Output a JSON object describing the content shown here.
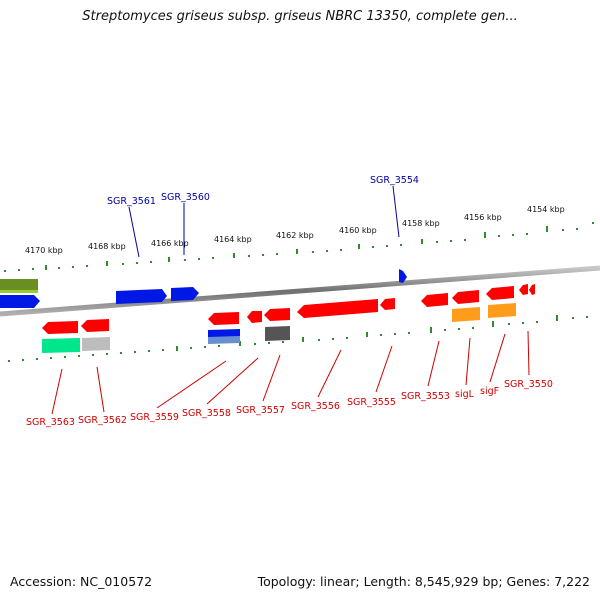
{
  "title": "Streptomyces griseus subsp. griseus NBRC 13350, complete gen...",
  "footer": {
    "accession": "Accession: NC_010572",
    "topology": "Topology: linear; Length: 8,545,929 bp; Genes: 7,222"
  },
  "colors": {
    "red": "#ff0000",
    "blue": "#0018e6",
    "olive": "#6b8e23",
    "green": "#00e68a",
    "gray": "#bdbdbd",
    "dark": "#555555",
    "orange": "#ff9d1a",
    "label_red": "#d00000",
    "label_blue": "#0000a0",
    "tick": "#2e8b2e"
  },
  "scale_labels": [
    "4170 kbp",
    "4168 kbp",
    "4166 kbp",
    "4164 kbp",
    "4162 kbp",
    "4160 kbp",
    "4158 kbp",
    "4156 kbp",
    "4154 kbp"
  ],
  "labels_top": [
    "SGR_3561",
    "SGR_3560",
    "SGR_3554"
  ],
  "labels_bottom": [
    "SGR_3563",
    "SGR_3562",
    "SGR_3559",
    "SGR_3558",
    "SGR_3557",
    "SGR_3556",
    "SGR_3555",
    "SGR_3553",
    "sigL",
    "sigF",
    "SGR_3550"
  ]
}
